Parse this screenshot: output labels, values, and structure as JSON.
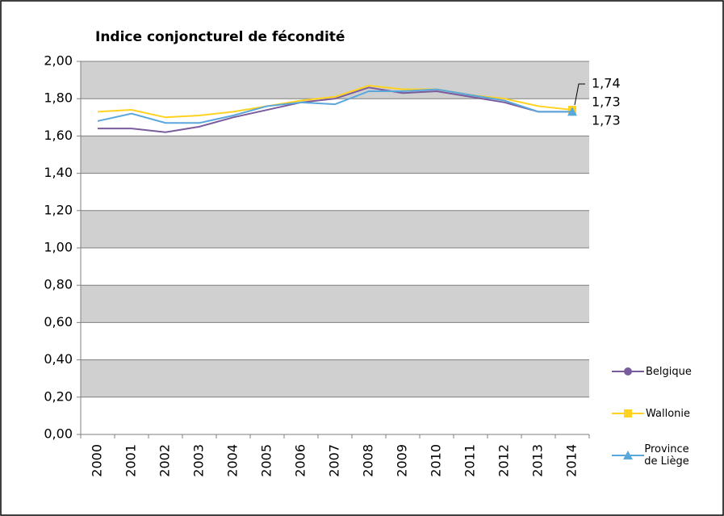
{
  "chart_data": {
    "type": "line",
    "title": "Indice conjoncturel de fécondité",
    "categories": [
      "2000",
      "2001",
      "2002",
      "2003",
      "2004",
      "2005",
      "2006",
      "2007",
      "2008",
      "2009",
      "2010",
      "2011",
      "2012",
      "2013",
      "2014"
    ],
    "series": [
      {
        "name": "Belgique",
        "color": "#7a5c9e",
        "marker": "circle",
        "values": [
          1.64,
          1.64,
          1.62,
          1.65,
          1.7,
          1.74,
          1.78,
          1.8,
          1.86,
          1.83,
          1.84,
          1.81,
          1.78,
          1.73,
          1.73
        ],
        "value_labels": [
          null,
          null,
          null,
          null,
          null,
          null,
          null,
          null,
          null,
          null,
          null,
          null,
          null,
          null,
          "1,73"
        ]
      },
      {
        "name": "Wallonie",
        "color": "#ffd21f",
        "marker": "square",
        "values": [
          1.73,
          1.74,
          1.7,
          1.71,
          1.73,
          1.76,
          1.79,
          1.81,
          1.87,
          1.85,
          1.85,
          1.82,
          1.8,
          1.76,
          1.74
        ],
        "value_labels": [
          null,
          null,
          null,
          null,
          null,
          null,
          null,
          null,
          null,
          null,
          null,
          null,
          null,
          null,
          "1,74"
        ]
      },
      {
        "name": "Province de Liège",
        "color": "#5aa7dc",
        "marker": "triangle",
        "values": [
          1.68,
          1.72,
          1.67,
          1.67,
          1.71,
          1.76,
          1.78,
          1.77,
          1.84,
          1.84,
          1.85,
          1.82,
          1.79,
          1.73,
          1.73
        ],
        "value_labels": [
          null,
          null,
          null,
          null,
          null,
          null,
          null,
          null,
          null,
          null,
          null,
          null,
          null,
          null,
          "1,73"
        ]
      }
    ],
    "ylim": [
      0,
      2
    ],
    "yticks": [
      {
        "value": 0,
        "label": "0,00"
      },
      {
        "value": 0.2,
        "label": "0,20"
      },
      {
        "value": 0.4,
        "label": "0,40"
      },
      {
        "value": 0.6,
        "label": "0,60"
      },
      {
        "value": 0.8,
        "label": "0,80"
      },
      {
        "value": 1,
        "label": "1,00"
      },
      {
        "value": 1.2,
        "label": "1,20"
      },
      {
        "value": 1.4,
        "label": "1,40"
      },
      {
        "value": 1.6,
        "label": "1,60"
      },
      {
        "value": 1.8,
        "label": "1,80"
      },
      {
        "value": 2,
        "label": "2,00"
      }
    ],
    "grid": true,
    "legend": "right"
  }
}
